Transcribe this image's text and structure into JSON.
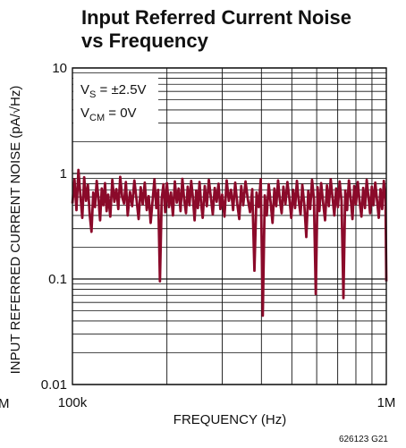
{
  "chart_data": {
    "type": "line",
    "title": [
      "Input Referred Current Noise",
      "vs Frequency"
    ],
    "xlabel": "FREQUENCY (Hz)",
    "ylabel": "INPUT REFERRED CURRENT NOISE (pA/√Hz)",
    "xscale": "log",
    "yscale": "log",
    "xlim": [
      100000,
      1000000
    ],
    "ylim": [
      0.01,
      10
    ],
    "x_tick_labels": [
      {
        "value": 100000,
        "label": "100k"
      },
      {
        "value": 1000000,
        "label": "1M"
      }
    ],
    "x_tick_left_clipped": "M",
    "y_tick_labels": [
      {
        "value": 10,
        "label": "10"
      },
      {
        "value": 1,
        "label": "1"
      },
      {
        "value": 0.1,
        "label": "0.1"
      },
      {
        "value": 0.01,
        "label": "0.01"
      }
    ],
    "grid": true,
    "conditions": {
      "vs": {
        "main": "V",
        "sub": "S",
        "rest": " = ±2.5V"
      },
      "vcm": {
        "main": "V",
        "sub": "CM",
        "rest": " = 0V"
      }
    },
    "series": [
      {
        "color": "#8b0a2a",
        "points": [
          [
            100000,
            0.52
          ],
          [
            101500,
            0.88
          ],
          [
            103000,
            0.45
          ],
          [
            104500,
            1.08
          ],
          [
            106000,
            0.62
          ],
          [
            107500,
            0.38
          ],
          [
            109000,
            0.92
          ],
          [
            110500,
            0.55
          ],
          [
            112000,
            0.78
          ],
          [
            113500,
            0.41
          ],
          [
            115000,
            0.28
          ],
          [
            116500,
            0.66
          ],
          [
            118000,
            0.48
          ],
          [
            119500,
            0.85
          ],
          [
            121000,
            0.58
          ],
          [
            122500,
            0.36
          ],
          [
            124000,
            0.72
          ],
          [
            125500,
            0.5
          ],
          [
            127000,
            0.81
          ],
          [
            128500,
            0.44
          ],
          [
            130000,
            0.63
          ],
          [
            132000,
            0.39
          ],
          [
            134000,
            0.87
          ],
          [
            136000,
            0.54
          ],
          [
            138000,
            0.71
          ],
          [
            140000,
            0.46
          ],
          [
            142000,
            0.93
          ],
          [
            144000,
            0.6
          ],
          [
            146000,
            0.52
          ],
          [
            148000,
            0.83
          ],
          [
            150000,
            0.4
          ],
          [
            152500,
            0.67
          ],
          [
            155000,
            0.49
          ],
          [
            157500,
            0.86
          ],
          [
            160000,
            0.57
          ],
          [
            162500,
            0.37
          ],
          [
            165000,
            0.74
          ],
          [
            167500,
            0.51
          ],
          [
            170000,
            0.82
          ],
          [
            172500,
            0.45
          ],
          [
            175000,
            0.61
          ],
          [
            177500,
            0.34
          ],
          [
            180000,
            0.55
          ],
          [
            182500,
            0.88
          ],
          [
            185000,
            0.47
          ],
          [
            187500,
            0.7
          ],
          [
            190000,
            0.095
          ],
          [
            192500,
            0.58
          ],
          [
            195000,
            0.79
          ],
          [
            197500,
            0.43
          ],
          [
            200000,
            0.81
          ],
          [
            203000,
            0.48
          ],
          [
            206000,
            0.66
          ],
          [
            209000,
            0.4
          ],
          [
            212000,
            0.84
          ],
          [
            215000,
            0.53
          ],
          [
            218000,
            0.72
          ],
          [
            221000,
            0.44
          ],
          [
            224000,
            0.89
          ],
          [
            227000,
            0.56
          ],
          [
            230000,
            0.42
          ],
          [
            233000,
            0.75
          ],
          [
            236000,
            0.5
          ],
          [
            239000,
            0.85
          ],
          [
            242000,
            0.59
          ],
          [
            245000,
            0.36
          ],
          [
            248000,
            0.69
          ],
          [
            251000,
            0.47
          ],
          [
            254000,
            0.83
          ],
          [
            257000,
            0.52
          ],
          [
            260000,
            0.38
          ],
          [
            264000,
            0.76
          ],
          [
            268000,
            0.49
          ],
          [
            272000,
            0.87
          ],
          [
            276000,
            0.6
          ],
          [
            280000,
            0.41
          ],
          [
            284000,
            0.73
          ],
          [
            288000,
            0.54
          ],
          [
            292000,
            0.8
          ],
          [
            296000,
            0.46
          ],
          [
            300000,
            0.63
          ],
          [
            305000,
            0.39
          ],
          [
            310000,
            0.86
          ],
          [
            315000,
            0.55
          ],
          [
            320000,
            0.7
          ],
          [
            325000,
            0.45
          ],
          [
            330000,
            0.82
          ],
          [
            335000,
            0.52
          ],
          [
            340000,
            0.37
          ],
          [
            345000,
            0.76
          ],
          [
            350000,
            0.5
          ],
          [
            356000,
            0.84
          ],
          [
            362000,
            0.57
          ],
          [
            368000,
            0.43
          ],
          [
            374000,
            0.71
          ],
          [
            380000,
            0.12
          ],
          [
            386000,
            0.66
          ],
          [
            392000,
            0.48
          ],
          [
            398000,
            0.88
          ],
          [
            404000,
            0.045
          ],
          [
            410000,
            0.62
          ],
          [
            416000,
            0.4
          ],
          [
            422000,
            0.79
          ],
          [
            428000,
            0.53
          ],
          [
            434000,
            0.34
          ],
          [
            440000,
            0.72
          ],
          [
            446000,
            0.49
          ],
          [
            452000,
            0.86
          ],
          [
            458000,
            0.56
          ],
          [
            464000,
            0.42
          ],
          [
            470000,
            0.75
          ],
          [
            477000,
            0.51
          ],
          [
            484000,
            0.83
          ],
          [
            491000,
            0.58
          ],
          [
            498000,
            0.38
          ],
          [
            505000,
            0.7
          ],
          [
            512000,
            0.47
          ],
          [
            519000,
            0.85
          ],
          [
            526000,
            0.55
          ],
          [
            533000,
            0.41
          ],
          [
            540000,
            0.78
          ],
          [
            548000,
            0.5
          ],
          [
            556000,
            0.25
          ],
          [
            564000,
            0.68
          ],
          [
            572000,
            0.46
          ],
          [
            580000,
            0.87
          ],
          [
            588000,
            0.57
          ],
          [
            596000,
            0.072
          ],
          [
            604000,
            0.74
          ],
          [
            612000,
            0.44
          ],
          [
            620000,
            0.81
          ],
          [
            629000,
            0.53
          ],
          [
            638000,
            0.36
          ],
          [
            647000,
            0.77
          ],
          [
            656000,
            0.49
          ],
          [
            665000,
            0.88
          ],
          [
            674000,
            0.59
          ],
          [
            683000,
            0.4
          ],
          [
            692000,
            0.72
          ],
          [
            701000,
            0.48
          ],
          [
            710000,
            0.84
          ],
          [
            720000,
            0.55
          ],
          [
            730000,
            0.066
          ],
          [
            740000,
            0.69
          ],
          [
            750000,
            0.45
          ],
          [
            760000,
            0.86
          ],
          [
            770000,
            0.58
          ],
          [
            780000,
            0.37
          ],
          [
            790000,
            0.76
          ],
          [
            800000,
            0.51
          ],
          [
            811000,
            0.83
          ],
          [
            822000,
            0.54
          ],
          [
            833000,
            0.39
          ],
          [
            844000,
            0.73
          ],
          [
            855000,
            0.47
          ],
          [
            866000,
            0.87
          ],
          [
            877000,
            0.6
          ],
          [
            888000,
            0.42
          ],
          [
            899000,
            0.75
          ],
          [
            910000,
            0.5
          ],
          [
            922000,
            0.82
          ],
          [
            934000,
            0.56
          ],
          [
            946000,
            0.38
          ],
          [
            958000,
            0.71
          ],
          [
            970000,
            0.46
          ],
          [
            982000,
            0.85
          ],
          [
            994000,
            0.57
          ],
          [
            1000000,
            0.095
          ]
        ]
      }
    ]
  },
  "figure_code": "626123 G21"
}
